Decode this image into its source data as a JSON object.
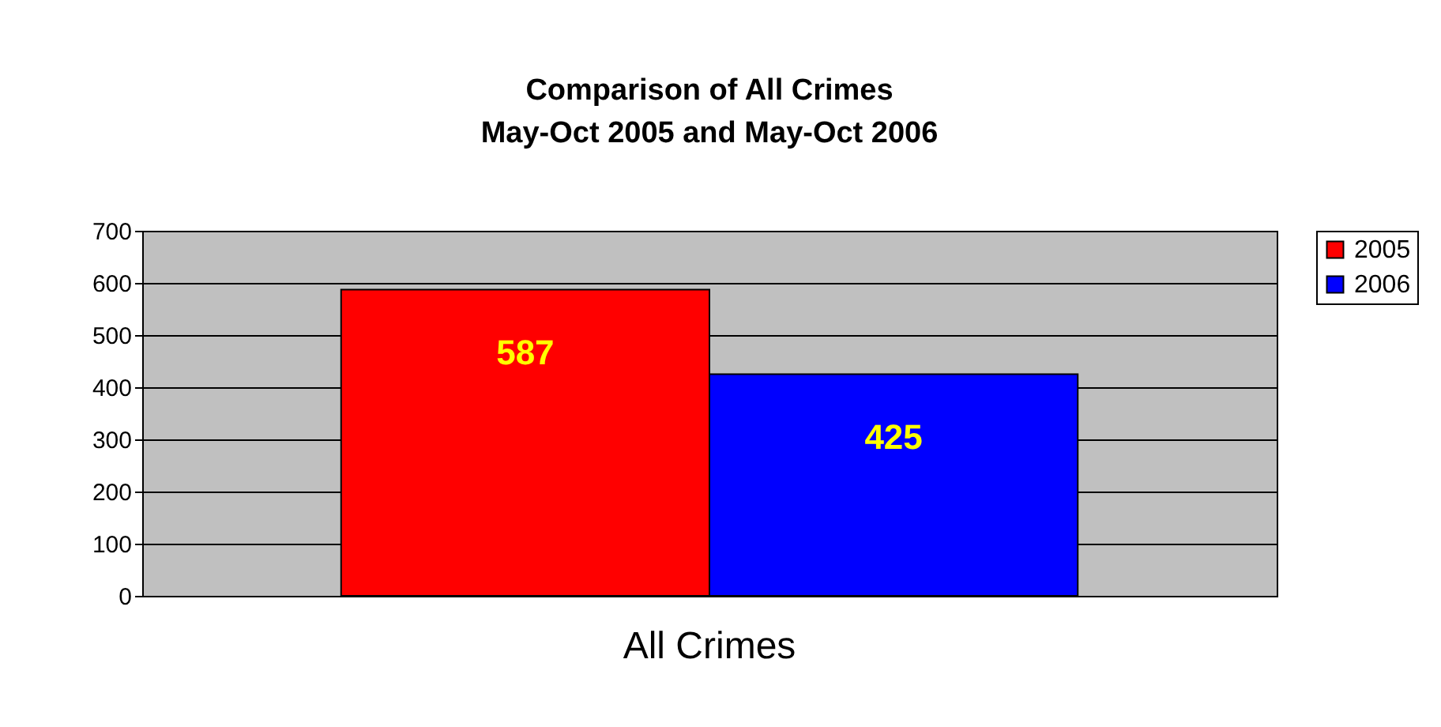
{
  "chart_data": {
    "type": "bar",
    "title": "Comparison of All Crimes",
    "subtitle": "May-Oct 2005 and May-Oct 2006",
    "categories": [
      "All Crimes"
    ],
    "series": [
      {
        "name": "2005",
        "color": "#ff0000",
        "values": [
          587
        ]
      },
      {
        "name": "2006",
        "color": "#0000ff",
        "values": [
          425
        ]
      }
    ],
    "ylim": [
      0,
      700
    ],
    "yticks": [
      0,
      100,
      200,
      300,
      400,
      500,
      600,
      700
    ],
    "grid": true,
    "legend": "right",
    "data_labels": true
  }
}
